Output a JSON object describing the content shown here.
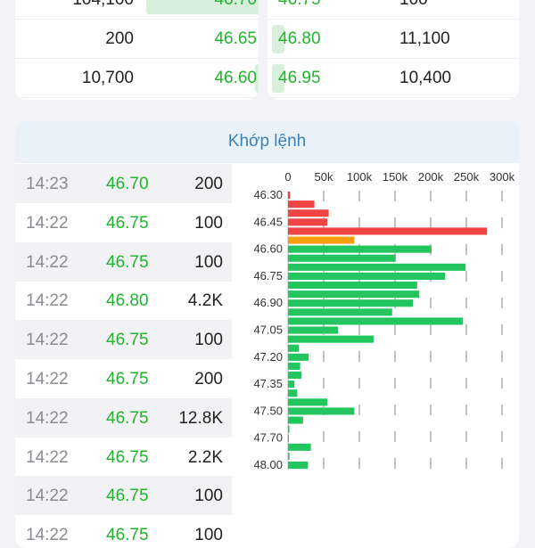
{
  "order_book": {
    "bids": [
      {
        "volume": "104,100",
        "price": "46.70"
      },
      {
        "volume": "200",
        "price": "46.65"
      },
      {
        "volume": "10,700",
        "price": "46.60"
      }
    ],
    "asks": [
      {
        "price": "46.75",
        "volume": "100"
      },
      {
        "price": "46.80",
        "volume": "11,100"
      },
      {
        "price": "46.95",
        "volume": "10,400"
      }
    ]
  },
  "trades": {
    "title": "Khớp lệnh",
    "rows": [
      {
        "time": "14:23",
        "price": "46.70",
        "volume": "200"
      },
      {
        "time": "14:22",
        "price": "46.75",
        "volume": "100"
      },
      {
        "time": "14:22",
        "price": "46.75",
        "volume": "100"
      },
      {
        "time": "14:22",
        "price": "46.80",
        "volume": "4.2K"
      },
      {
        "time": "14:22",
        "price": "46.75",
        "volume": "100"
      },
      {
        "time": "14:22",
        "price": "46.75",
        "volume": "200"
      },
      {
        "time": "14:22",
        "price": "46.75",
        "volume": "12.8K"
      },
      {
        "time": "14:22",
        "price": "46.75",
        "volume": "2.2K"
      },
      {
        "time": "14:22",
        "price": "46.75",
        "volume": "100"
      },
      {
        "time": "14:22",
        "price": "46.75",
        "volume": "100"
      }
    ]
  },
  "chart_data": {
    "type": "bar",
    "orientation": "horizontal",
    "xlim": [
      0,
      300000
    ],
    "x_ticks": [
      "0",
      "50k",
      "100k",
      "150k",
      "200k",
      "250k",
      "300k"
    ],
    "y_tick_labels": [
      "46.30",
      "46.45",
      "46.60",
      "46.75",
      "46.90",
      "47.05",
      "47.20",
      "47.35",
      "47.50",
      "47.70",
      "48.00"
    ],
    "categories": [
      "46.30",
      "46.35",
      "46.40",
      "46.45",
      "46.50",
      "46.55",
      "46.60",
      "46.65",
      "46.70",
      "46.75",
      "46.80",
      "46.85",
      "46.90",
      "46.95",
      "47.00",
      "47.05",
      "47.10",
      "47.15",
      "47.20",
      "47.25",
      "47.30",
      "47.35",
      "47.40",
      "47.45",
      "47.50",
      "47.55",
      "47.60",
      "47.70",
      "47.80",
      "47.90",
      "48.00"
    ],
    "values": [
      3000,
      37000,
      57000,
      55000,
      279000,
      93000,
      201000,
      151000,
      249000,
      220000,
      181000,
      184000,
      175000,
      146000,
      245000,
      70000,
      120000,
      15000,
      29000,
      17000,
      19000,
      9000,
      13000,
      55000,
      93000,
      21000,
      2000,
      500,
      32000,
      2000,
      28000
    ],
    "colors": {
      "down": "#ef4444",
      "ref": "#f59e0b",
      "up": "#22c55e"
    },
    "color_class": [
      "down",
      "down",
      "down",
      "down",
      "down",
      "ref",
      "up",
      "up",
      "up",
      "up",
      "up",
      "up",
      "up",
      "up",
      "up",
      "up",
      "up",
      "up",
      "up",
      "up",
      "up",
      "up",
      "up",
      "up",
      "up",
      "up",
      "up",
      "up",
      "up",
      "up",
      "up"
    ]
  }
}
